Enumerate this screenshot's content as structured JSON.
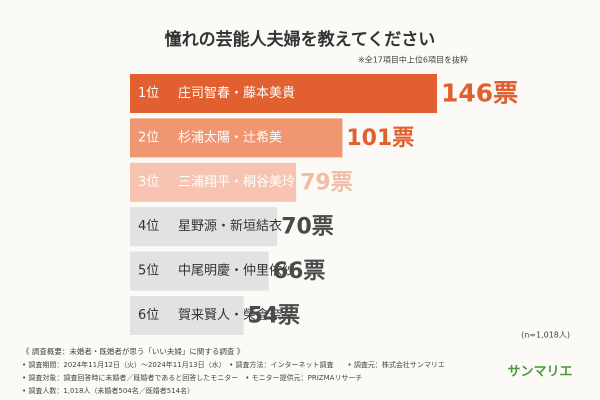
{
  "chart_data": {
    "type": "hbar",
    "title": "憧れの芸能人夫婦を教えてください",
    "subtitle": "※全17項目中上位6項目を抜粋",
    "ranks": [
      "1位",
      "2位",
      "3位",
      "4位",
      "5位",
      "6位"
    ],
    "categories": [
      "庄司智春・藤本美貴",
      "杉浦太陽・辻希美",
      "三浦翔平・桐谷美玲",
      "星野源・新垣結衣",
      "中尾明慶・仲里依紗",
      "賀来賢人・榮倉奈々"
    ],
    "values": [
      146,
      101,
      79,
      70,
      66,
      54
    ],
    "value_labels": [
      "146票",
      "101票",
      "79票",
      "70票",
      "66票",
      "54票"
    ],
    "colors": [
      "#e2602f",
      "#f09670",
      "#f6c4b0",
      "#e2e2e2",
      "#e2e2e2",
      "#e2e2e2"
    ],
    "label_colors": [
      "#e2602f",
      "#e2602f",
      "#f3bca6",
      "#4a4a4a",
      "#4a4a4a",
      "#4a4a4a"
    ],
    "text_colors": [
      "#ffffff",
      "#ffffff",
      "#ffffff",
      "#333333",
      "#333333",
      "#333333"
    ],
    "sample_note": "(n=1,018人)"
  },
  "footer": {
    "heading": "《 調査概要：未婚者・既婚者が思う「いい夫婦」に関する調査 》",
    "lines": [
      "• 調査期間：2024年11月12日（火）～2024年11月13日（水）　• 調査方法：インターネット調査　　• 調査元：株式会社サンマリエ",
      "• 調査対象：調査回答時に未婚者／既婚者であると回答したモニター　• モニター提供元：PRIZMAリサーチ",
      "• 調査人数：1,018人（未婚者504名／既婚者514名）"
    ],
    "logo": "サンマリエ"
  }
}
